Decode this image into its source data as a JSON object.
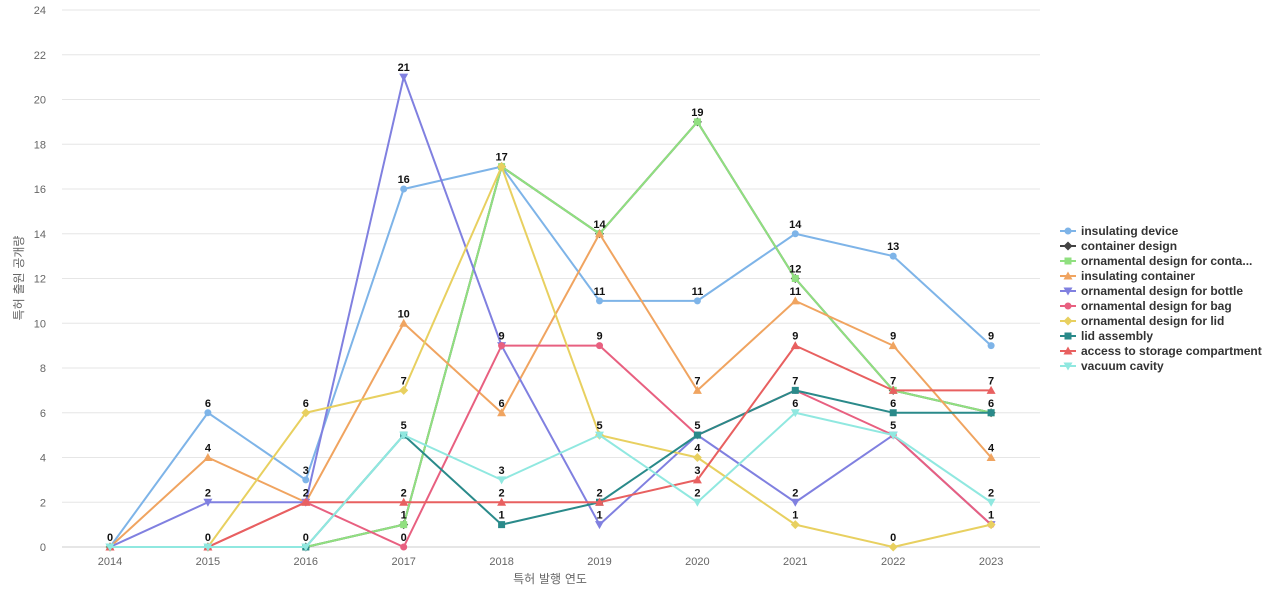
{
  "chart_data": {
    "type": "line",
    "xlabel": "특허 발행 연도",
    "ylabel": "특허 출원 공개량",
    "x": [
      "2014",
      "2015",
      "2016",
      "2017",
      "2018",
      "2019",
      "2020",
      "2021",
      "2022",
      "2023"
    ],
    "ylim": [
      0,
      24
    ],
    "yticks": [
      0,
      2,
      4,
      6,
      8,
      10,
      12,
      14,
      16,
      18,
      20,
      22,
      24
    ],
    "grid": true,
    "legend_position": "right",
    "series": [
      {
        "name": "insulating device",
        "color": "#7eb4e8",
        "marker": "circle",
        "values": [
          0,
          6,
          3,
          16,
          17,
          11,
          11,
          14,
          13,
          9
        ]
      },
      {
        "name": "container design",
        "color": "#444444",
        "marker": "diamond",
        "values": [
          0,
          0,
          0,
          1,
          17,
          14,
          19,
          12,
          7,
          6
        ]
      },
      {
        "name": "ornamental design for conta...",
        "color": "#90e080",
        "marker": "square",
        "values": [
          0,
          0,
          0,
          1,
          17,
          14,
          19,
          12,
          7,
          6
        ]
      },
      {
        "name": "insulating container",
        "color": "#f0a460",
        "marker": "triangle",
        "values": [
          0,
          4,
          2,
          10,
          6,
          14,
          7,
          11,
          9,
          4
        ]
      },
      {
        "name": "ornamental design for bottle",
        "color": "#8080e0",
        "marker": "triangle-down",
        "values": [
          0,
          2,
          2,
          21,
          9,
          1,
          5,
          2,
          5,
          1
        ]
      },
      {
        "name": "ornamental design for bag",
        "color": "#e86080",
        "marker": "circle",
        "values": [
          0,
          0,
          2,
          0,
          9,
          9,
          5,
          7,
          5,
          1
        ]
      },
      {
        "name": "ornamental design for lid",
        "color": "#e8d060",
        "marker": "diamond",
        "values": [
          0,
          0,
          6,
          7,
          17,
          5,
          4,
          1,
          0,
          1
        ]
      },
      {
        "name": "lid assembly",
        "color": "#2a8a8a",
        "marker": "square",
        "values": [
          0,
          0,
          0,
          5,
          1,
          2,
          5,
          7,
          6,
          6
        ]
      },
      {
        "name": "access to storage compartment",
        "color": "#e86060",
        "marker": "triangle",
        "values": [
          0,
          0,
          2,
          2,
          2,
          2,
          3,
          9,
          7,
          7
        ]
      },
      {
        "name": "vacuum cavity",
        "color": "#90e8e0",
        "marker": "triangle-down",
        "values": [
          0,
          0,
          0,
          5,
          3,
          5,
          2,
          6,
          5,
          2
        ]
      }
    ],
    "labels": [
      {
        "xi": 0,
        "value": 0
      },
      {
        "xi": 1,
        "value": 6
      },
      {
        "xi": 1,
        "value": 4
      },
      {
        "xi": 1,
        "value": 2
      },
      {
        "xi": 1,
        "value": 0
      },
      {
        "xi": 2,
        "value": 6
      },
      {
        "xi": 2,
        "value": 3
      },
      {
        "xi": 2,
        "value": 2
      },
      {
        "xi": 2,
        "value": 0
      },
      {
        "xi": 3,
        "value": 21
      },
      {
        "xi": 3,
        "value": 16
      },
      {
        "xi": 3,
        "value": 10
      },
      {
        "xi": 3,
        "value": 7
      },
      {
        "xi": 3,
        "value": 5
      },
      {
        "xi": 3,
        "value": 2
      },
      {
        "xi": 3,
        "value": 1
      },
      {
        "xi": 3,
        "value": 0
      },
      {
        "xi": 4,
        "value": 17
      },
      {
        "xi": 4,
        "value": 9
      },
      {
        "xi": 4,
        "value": 6
      },
      {
        "xi": 4,
        "value": 3
      },
      {
        "xi": 4,
        "value": 2
      },
      {
        "xi": 4,
        "value": 1
      },
      {
        "xi": 5,
        "value": 14
      },
      {
        "xi": 5,
        "value": 11
      },
      {
        "xi": 5,
        "value": 9
      },
      {
        "xi": 5,
        "value": 5
      },
      {
        "xi": 5,
        "value": 2
      },
      {
        "xi": 5,
        "value": 1
      },
      {
        "xi": 6,
        "value": 19
      },
      {
        "xi": 6,
        "value": 11
      },
      {
        "xi": 6,
        "value": 7
      },
      {
        "xi": 6,
        "value": 5
      },
      {
        "xi": 6,
        "value": 4
      },
      {
        "xi": 6,
        "value": 3
      },
      {
        "xi": 6,
        "value": 2
      },
      {
        "xi": 7,
        "value": 14
      },
      {
        "xi": 7,
        "value": 12
      },
      {
        "xi": 7,
        "value": 11
      },
      {
        "xi": 7,
        "value": 9
      },
      {
        "xi": 7,
        "value": 7
      },
      {
        "xi": 7,
        "value": 6
      },
      {
        "xi": 7,
        "value": 2
      },
      {
        "xi": 7,
        "value": 1
      },
      {
        "xi": 8,
        "value": 13
      },
      {
        "xi": 8,
        "value": 9
      },
      {
        "xi": 8,
        "value": 7
      },
      {
        "xi": 8,
        "value": 6
      },
      {
        "xi": 8,
        "value": 5
      },
      {
        "xi": 8,
        "value": 0
      },
      {
        "xi": 9,
        "value": 9
      },
      {
        "xi": 9,
        "value": 7
      },
      {
        "xi": 9,
        "value": 6
      },
      {
        "xi": 9,
        "value": 4
      },
      {
        "xi": 9,
        "value": 2
      },
      {
        "xi": 9,
        "value": 1
      }
    ]
  }
}
